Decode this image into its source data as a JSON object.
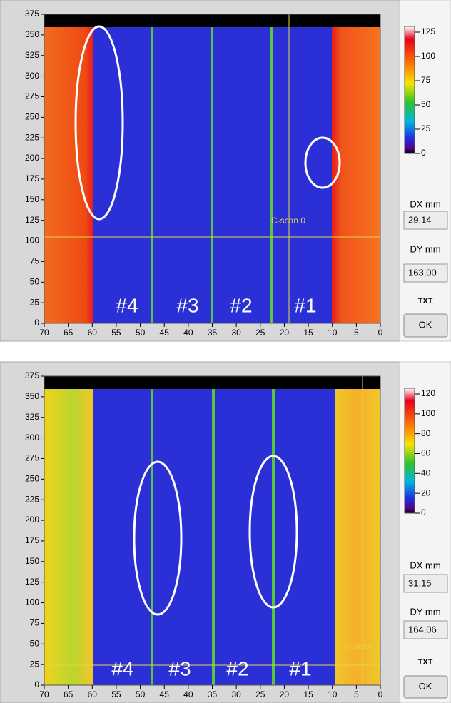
{
  "panels": [
    {
      "yticks": [
        0,
        25,
        50,
        75,
        100,
        125,
        150,
        175,
        200,
        225,
        250,
        275,
        300,
        325,
        350,
        375
      ],
      "xticks": [
        70,
        65,
        60,
        55,
        50,
        45,
        40,
        35,
        30,
        25,
        20,
        15,
        10,
        5,
        0
      ],
      "colorbar_ticks": [
        0,
        25,
        50,
        75,
        100,
        125
      ],
      "cursor_label": "C-scan 0",
      "region_labels": [
        "#4",
        "#3",
        "#2",
        "#1"
      ],
      "dx_label": "DX mm",
      "dx_value": "29,14",
      "dy_label": "DY mm",
      "dy_value": "163,00",
      "txt_label": "TXT",
      "ok_button": "OK"
    },
    {
      "yticks": [
        0,
        25,
        50,
        75,
        100,
        125,
        150,
        175,
        200,
        225,
        250,
        275,
        300,
        325,
        350,
        375
      ],
      "xticks": [
        70,
        65,
        60,
        55,
        50,
        45,
        40,
        35,
        30,
        25,
        20,
        15,
        10,
        5,
        0
      ],
      "colorbar_ticks": [
        0,
        20,
        40,
        60,
        80,
        100,
        120
      ],
      "cursor_label": "C-scan 0",
      "region_labels": [
        "#4",
        "#3",
        "#2",
        "#1"
      ],
      "dx_label": "DX mm",
      "dx_value": "31,15",
      "dy_label": "DY mm",
      "dy_value": "164,06",
      "txt_label": "TXT",
      "ok_button": "OK"
    }
  ]
}
